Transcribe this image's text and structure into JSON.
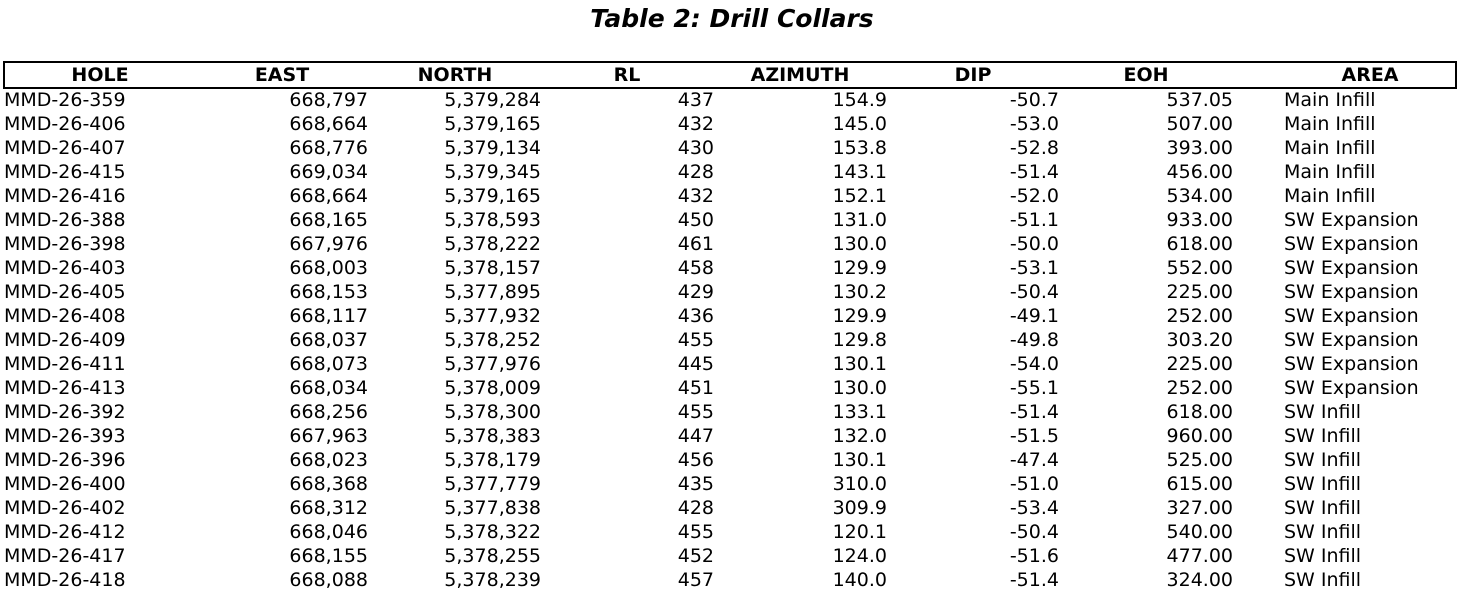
{
  "title": "Table 2: Drill Collars",
  "table": {
    "headers": [
      "HOLE",
      "EAST",
      "NORTH",
      "RL",
      "AZIMUTH",
      "DIP",
      "EOH",
      "AREA"
    ],
    "rows": [
      [
        "MMD-26-359",
        "668,797",
        "5,379,284",
        "437",
        "154.9",
        "-50.7",
        "537.05",
        "Main Infill"
      ],
      [
        "MMD-26-406",
        "668,664",
        "5,379,165",
        "432",
        "145.0",
        "-53.0",
        "507.00",
        "Main Infill"
      ],
      [
        "MMD-26-407",
        "668,776",
        "5,379,134",
        "430",
        "153.8",
        "-52.8",
        "393.00",
        "Main Infill"
      ],
      [
        "MMD-26-415",
        "669,034",
        "5,379,345",
        "428",
        "143.1",
        "-51.4",
        "456.00",
        "Main Infill"
      ],
      [
        "MMD-26-416",
        "668,664",
        "5,379,165",
        "432",
        "152.1",
        "-52.0",
        "534.00",
        "Main Infill"
      ],
      [
        "MMD-26-388",
        "668,165",
        "5,378,593",
        "450",
        "131.0",
        "-51.1",
        "933.00",
        "SW Expansion"
      ],
      [
        "MMD-26-398",
        "667,976",
        "5,378,222",
        "461",
        "130.0",
        "-50.0",
        "618.00",
        "SW Expansion"
      ],
      [
        "MMD-26-403",
        "668,003",
        "5,378,157",
        "458",
        "129.9",
        "-53.1",
        "552.00",
        "SW Expansion"
      ],
      [
        "MMD-26-405",
        "668,153",
        "5,377,895",
        "429",
        "130.2",
        "-50.4",
        "225.00",
        "SW Expansion"
      ],
      [
        "MMD-26-408",
        "668,117",
        "5,377,932",
        "436",
        "129.9",
        "-49.1",
        "252.00",
        "SW Expansion"
      ],
      [
        "MMD-26-409",
        "668,037",
        "5,378,252",
        "455",
        "129.8",
        "-49.8",
        "303.20",
        "SW Expansion"
      ],
      [
        "MMD-26-411",
        "668,073",
        "5,377,976",
        "445",
        "130.1",
        "-54.0",
        "225.00",
        "SW Expansion"
      ],
      [
        "MMD-26-413",
        "668,034",
        "5,378,009",
        "451",
        "130.0",
        "-55.1",
        "252.00",
        "SW Expansion"
      ],
      [
        "MMD-26-392",
        "668,256",
        "5,378,300",
        "455",
        "133.1",
        "-51.4",
        "618.00",
        "SW Infill"
      ],
      [
        "MMD-26-393",
        "667,963",
        "5,378,383",
        "447",
        "132.0",
        "-51.5",
        "960.00",
        "SW Infill"
      ],
      [
        "MMD-26-396",
        "668,023",
        "5,378,179",
        "456",
        "130.1",
        "-47.4",
        "525.00",
        "SW Infill"
      ],
      [
        "MMD-26-400",
        "668,368",
        "5,377,779",
        "435",
        "310.0",
        "-51.0",
        "615.00",
        "SW Infill"
      ],
      [
        "MMD-26-402",
        "668,312",
        "5,377,838",
        "428",
        "309.9",
        "-53.4",
        "327.00",
        "SW Infill"
      ],
      [
        "MMD-26-412",
        "668,046",
        "5,378,322",
        "455",
        "120.1",
        "-50.4",
        "540.00",
        "SW Infill"
      ],
      [
        "MMD-26-417",
        "668,155",
        "5,378,255",
        "452",
        "124.0",
        "-51.6",
        "477.00",
        "SW Infill"
      ],
      [
        "MMD-26-418",
        "668,088",
        "5,378,239",
        "457",
        "140.0",
        "-51.4",
        "324.00",
        "SW Infill"
      ]
    ]
  }
}
